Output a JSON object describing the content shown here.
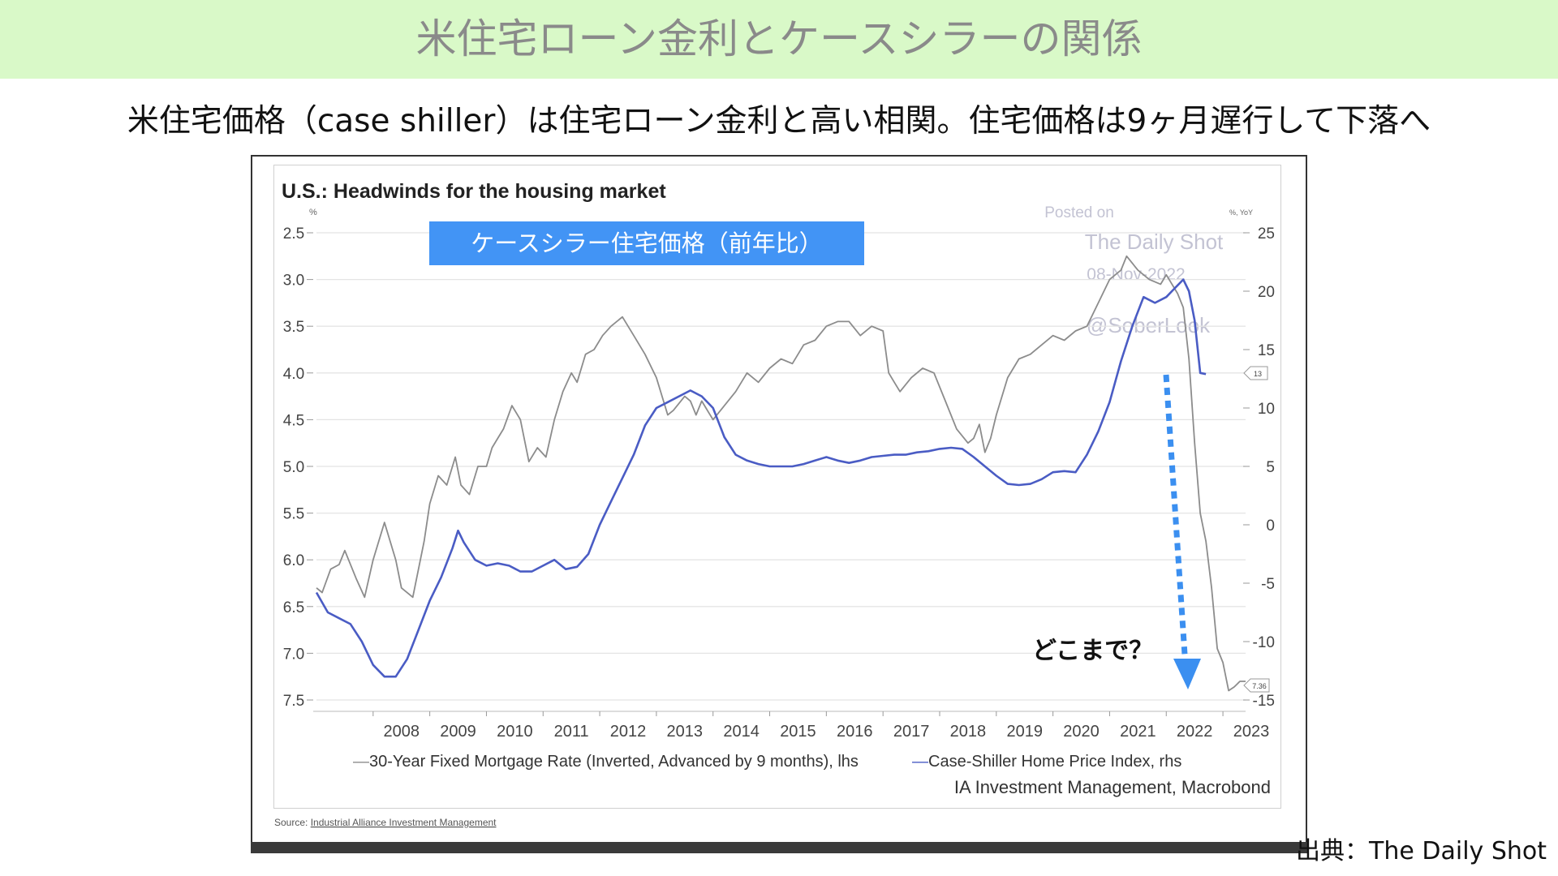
{
  "slide": {
    "title": "米住宅ローン金利とケースシラーの関係",
    "subtitle": "米住宅価格（case shiller）は住宅ローン金利と高い相関。住宅価格は9ヶ月遅行して下落へ",
    "citation": "出典：The Daily Shot",
    "colors": {
      "banner": "#d9f9c8",
      "highlight_box": "#4294f5",
      "arrow": "#3b8ff0"
    }
  },
  "chart_data": {
    "type": "line",
    "title": "U.S.: Headwinds for the housing market",
    "ylabel_left": "%",
    "ylabel_right": "%, YoY",
    "x_ticks": [
      "2008",
      "2009",
      "2010",
      "2011",
      "2012",
      "2013",
      "2014",
      "2015",
      "2016",
      "2017",
      "2018",
      "2019",
      "2020",
      "2021",
      "2022",
      "2023"
    ],
    "ylim_left": [
      7.5,
      2.5
    ],
    "left_inverted": true,
    "left_ticks": [
      "2.5",
      "3.0",
      "3.5",
      "4.0",
      "4.5",
      "5.0",
      "5.5",
      "6.0",
      "6.5",
      "7.0",
      "7.5"
    ],
    "ylim_right": [
      -15,
      25
    ],
    "right_ticks": [
      "25",
      "20",
      "15",
      "10",
      "5",
      "0",
      "-5",
      "-10",
      "-15"
    ],
    "grid": true,
    "series": [
      {
        "name": "30-Year Fixed Mortgage Rate (Inverted, Advanced by 9 months), lhs",
        "axis": "left",
        "color": "#8c8c8c",
        "x": [
          2007.0,
          2007.1,
          2007.25,
          2007.4,
          2007.5,
          2007.7,
          2007.85,
          2008.0,
          2008.2,
          2008.4,
          2008.5,
          2008.7,
          2008.9,
          2009.0,
          2009.15,
          2009.3,
          2009.45,
          2009.55,
          2009.7,
          2009.85,
          2010.0,
          2010.1,
          2010.2,
          2010.3,
          2010.45,
          2010.6,
          2010.75,
          2010.9,
          2011.05,
          2011.2,
          2011.35,
          2011.5,
          2011.6,
          2011.75,
          2011.9,
          2012.05,
          2012.2,
          2012.4,
          2012.6,
          2012.8,
          2013.0,
          2013.2,
          2013.3,
          2013.5,
          2013.6,
          2013.7,
          2013.8,
          2013.9,
          2014.0,
          2014.2,
          2014.4,
          2014.6,
          2014.8,
          2015.0,
          2015.2,
          2015.4,
          2015.6,
          2015.8,
          2016.0,
          2016.2,
          2016.4,
          2016.6,
          2016.8,
          2017.0,
          2017.1,
          2017.2,
          2017.3,
          2017.5,
          2017.7,
          2017.9,
          2018.1,
          2018.3,
          2018.5,
          2018.6,
          2018.7,
          2018.8,
          2018.9,
          2019.0,
          2019.2,
          2019.4,
          2019.6,
          2019.8,
          2020.0,
          2020.2,
          2020.4,
          2020.6,
          2020.8,
          2021.0,
          2021.2,
          2021.3,
          2021.5,
          2021.7,
          2021.9,
          2022.0,
          2022.2,
          2022.3,
          2022.4,
          2022.5,
          2022.6,
          2022.7,
          2022.8,
          2022.9,
          2023.0,
          2023.1,
          2023.2,
          2023.3,
          2023.4
        ],
        "y": [
          6.3,
          6.35,
          6.1,
          6.05,
          5.9,
          6.2,
          6.4,
          6.0,
          5.6,
          6.0,
          6.3,
          6.4,
          5.8,
          5.4,
          5.1,
          5.2,
          4.9,
          5.2,
          5.3,
          5.0,
          5.0,
          4.8,
          4.7,
          4.6,
          4.35,
          4.5,
          4.95,
          4.8,
          4.9,
          4.5,
          4.2,
          4.0,
          4.1,
          3.8,
          3.75,
          3.6,
          3.5,
          3.4,
          3.6,
          3.8,
          4.05,
          4.45,
          4.4,
          4.25,
          4.3,
          4.45,
          4.3,
          4.4,
          4.5,
          4.35,
          4.2,
          4.0,
          4.1,
          3.95,
          3.85,
          3.9,
          3.7,
          3.65,
          3.5,
          3.45,
          3.45,
          3.6,
          3.5,
          3.55,
          4.0,
          4.1,
          4.2,
          4.05,
          3.95,
          4.0,
          4.3,
          4.6,
          4.75,
          4.7,
          4.55,
          4.85,
          4.7,
          4.45,
          4.05,
          3.85,
          3.8,
          3.7,
          3.6,
          3.65,
          3.55,
          3.5,
          3.25,
          3.0,
          2.9,
          2.75,
          2.9,
          3.0,
          3.05,
          2.95,
          3.15,
          3.3,
          3.85,
          4.75,
          5.5,
          5.8,
          6.3,
          6.95,
          7.1,
          7.4,
          7.36,
          7.3,
          7.3
        ]
      },
      {
        "name": "Case-Shiller Home Price Index, rhs",
        "axis": "right",
        "color": "#4a5cc4",
        "x": [
          2007.0,
          2007.2,
          2007.4,
          2007.6,
          2007.8,
          2008.0,
          2008.2,
          2008.4,
          2008.6,
          2008.8,
          2009.0,
          2009.2,
          2009.4,
          2009.5,
          2009.6,
          2009.8,
          2010.0,
          2010.2,
          2010.4,
          2010.6,
          2010.8,
          2011.0,
          2011.2,
          2011.4,
          2011.6,
          2011.8,
          2012.0,
          2012.2,
          2012.4,
          2012.6,
          2012.8,
          2013.0,
          2013.2,
          2013.4,
          2013.6,
          2013.8,
          2014.0,
          2014.2,
          2014.4,
          2014.6,
          2014.8,
          2015.0,
          2015.2,
          2015.4,
          2015.6,
          2015.8,
          2016.0,
          2016.2,
          2016.4,
          2016.6,
          2016.8,
          2017.0,
          2017.2,
          2017.4,
          2017.6,
          2017.8,
          2018.0,
          2018.2,
          2018.4,
          2018.6,
          2018.8,
          2019.0,
          2019.2,
          2019.4,
          2019.6,
          2019.8,
          2020.0,
          2020.2,
          2020.4,
          2020.6,
          2020.8,
          2021.0,
          2021.2,
          2021.4,
          2021.6,
          2021.8,
          2022.0,
          2022.1,
          2022.2,
          2022.3,
          2022.4,
          2022.5,
          2022.6,
          2022.7
        ],
        "y": [
          -5.8,
          -7.5,
          -8.0,
          -8.5,
          -10.0,
          -12.0,
          -13.0,
          -13.0,
          -11.5,
          -9.0,
          -6.5,
          -4.5,
          -2.0,
          -0.5,
          -1.5,
          -3.0,
          -3.5,
          -3.3,
          -3.5,
          -4.0,
          -4.0,
          -3.5,
          -3.0,
          -3.8,
          -3.6,
          -2.5,
          0.0,
          2.0,
          4.0,
          6.0,
          8.5,
          10.0,
          10.5,
          11.0,
          11.5,
          11.0,
          10.0,
          7.5,
          6.0,
          5.5,
          5.2,
          5.0,
          5.0,
          5.0,
          5.2,
          5.5,
          5.8,
          5.5,
          5.3,
          5.5,
          5.8,
          5.9,
          6.0,
          6.0,
          6.2,
          6.3,
          6.5,
          6.6,
          6.5,
          5.8,
          5.0,
          4.2,
          3.5,
          3.4,
          3.5,
          3.9,
          4.5,
          4.6,
          4.5,
          6.0,
          8.0,
          10.5,
          14.0,
          17.0,
          19.5,
          19.0,
          19.5,
          20.0,
          20.5,
          21.0,
          20.0,
          17.5,
          13.0,
          12.9
        ]
      }
    ],
    "labels": {
      "highlight_box": "ケースシラー住宅価格（前年比）",
      "annotation": "どこまで？",
      "watermark": [
        "Posted on",
        "The Daily Shot",
        "08-Nov-2022",
        "@SoberLook"
      ],
      "right_markers": [
        "13",
        "7.36"
      ],
      "legend_line1_prefix": "—",
      "legend_item1": "30-Year Fixed Mortgage Rate (Inverted, Advanced by 9 months), lhs",
      "legend_item2_prefix": "—",
      "legend_item2": "Case-Shiller Home Price Index, rhs",
      "legend_source": "IA Investment Management, Macrobond",
      "source_prefix": "Source:",
      "source_link": "Industrial Alliance Investment Management"
    }
  }
}
